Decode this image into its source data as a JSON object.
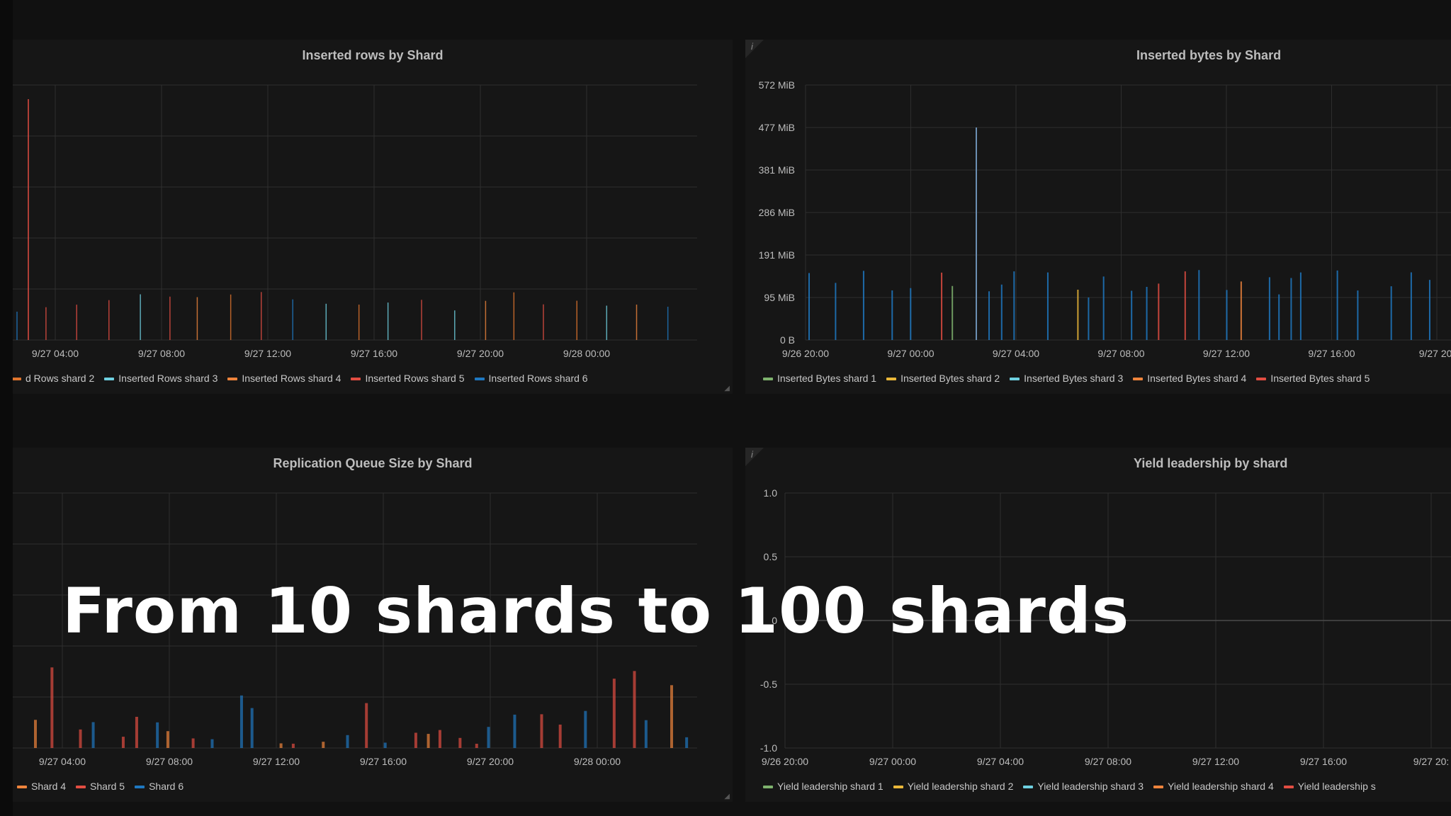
{
  "caption": "From 10 shards to 100 shards",
  "panels": [
    {
      "title": "Inserted rows by Shard",
      "show_info": false,
      "y_ticks": [],
      "x_ticks": [
        "9/27 04:00",
        "9/27 08:00",
        "9/27 12:00",
        "9/27 16:00",
        "9/27 20:00",
        "9/28 00:00"
      ],
      "legend": [
        "d Rows shard 2",
        "Inserted Rows shard 3",
        "Inserted Rows shard 4",
        "Inserted Rows shard 5",
        "Inserted Rows shard 6"
      ],
      "legend_colors": [
        "#e0752d",
        "#6ed0e0",
        "#ef843c",
        "#e24d42",
        "#1f78c1"
      ]
    },
    {
      "title": "Inserted bytes by Shard",
      "show_info": true,
      "info_icon": "i",
      "y_ticks": [
        "572 MiB",
        "477 MiB",
        "381 MiB",
        "286 MiB",
        "191 MiB",
        "95 MiB",
        "0 B"
      ],
      "x_ticks": [
        "9/26 20:00",
        "9/27 00:00",
        "9/27 04:00",
        "9/27 08:00",
        "9/27 12:00",
        "9/27 16:00",
        "9/27 20:"
      ],
      "legend": [
        "Inserted Bytes shard 1",
        "Inserted Bytes shard 2",
        "Inserted Bytes shard 3",
        "Inserted Bytes shard 4",
        "Inserted Bytes shard 5"
      ],
      "legend_colors": [
        "#7eb26d",
        "#eab839",
        "#6ed0e0",
        "#ef843c",
        "#e24d42"
      ]
    },
    {
      "title": "Replication Queue Size by Shard",
      "show_info": false,
      "y_ticks": [],
      "x_ticks": [
        "9/27 04:00",
        "9/27 08:00",
        "9/27 12:00",
        "9/27 16:00",
        "9/27 20:00",
        "9/28 00:00"
      ],
      "legend": [
        "Shard 4",
        "Shard 5",
        "Shard 6"
      ],
      "legend_colors": [
        "#ef843c",
        "#e24d42",
        "#1f78c1"
      ]
    },
    {
      "title": "Yield leadership by shard",
      "show_info": true,
      "info_icon": "i",
      "y_ticks": [
        "1.0",
        "0.5",
        "0",
        "-0.5",
        "-1.0"
      ],
      "x_ticks": [
        "9/26 20:00",
        "9/27 00:00",
        "9/27 04:00",
        "9/27 08:00",
        "9/27 12:00",
        "9/27 16:00",
        "9/27 20:"
      ],
      "legend": [
        "Yield leadership shard 1",
        "Yield leadership shard 2",
        "Yield leadership shard 3",
        "Yield leadership shard 4",
        "Yield leadership s"
      ],
      "legend_colors": [
        "#7eb26d",
        "#eab839",
        "#6ed0e0",
        "#ef843c",
        "#e24d42"
      ]
    }
  ]
}
